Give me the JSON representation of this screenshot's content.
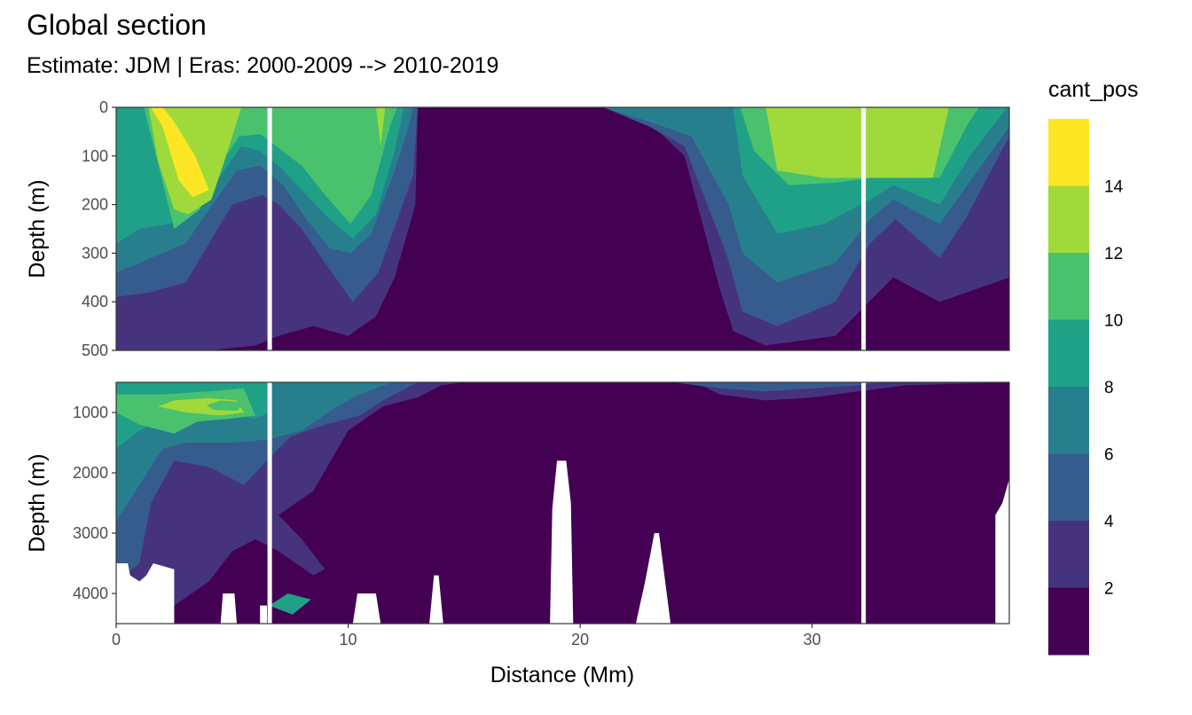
{
  "chart_data": {
    "type": "heatmap",
    "title": "Global section",
    "subtitle": "Estimate: JDM  | Eras: 2000-2009 --> 2010-2019",
    "xlabel": "Distance (Mm)",
    "ylabel": "Depth (m)",
    "xlim": [
      0,
      38.5
    ],
    "x_ticks": [
      0,
      10,
      20,
      30
    ],
    "panels": [
      {
        "name": "upper",
        "ylim": [
          0,
          500
        ],
        "y_ticks": [
          0,
          100,
          200,
          300,
          400,
          500
        ]
      },
      {
        "name": "lower",
        "ylim": [
          500,
          4500
        ],
        "y_ticks": [
          1000,
          2000,
          3000,
          4000
        ]
      }
    ],
    "legend": {
      "title": "cant_pos",
      "placement": "right",
      "breaks": [
        2,
        4,
        6,
        8,
        10,
        12,
        14
      ],
      "colors": [
        "#440154",
        "#46337E",
        "#365C8D",
        "#277F8E",
        "#1FA187",
        "#4AC16D",
        "#9FDA3A",
        "#FDE725"
      ]
    },
    "section_gaps_x": [
      6.6,
      32.2
    ],
    "upper_layers": [
      {
        "level": 1,
        "profile": [
          [
            0,
            500
          ],
          [
            38.5,
            500
          ]
        ]
      },
      {
        "level": 2,
        "profile": [
          [
            0,
            500
          ],
          [
            4,
            500
          ],
          [
            6,
            490
          ],
          [
            7,
            470
          ],
          [
            8.5,
            450
          ],
          [
            10,
            470
          ],
          [
            11.2,
            430
          ],
          [
            12,
            350
          ],
          [
            12.9,
            200
          ],
          [
            13,
            0
          ],
          [
            22,
            0
          ],
          [
            23.5,
            55
          ],
          [
            24.5,
            100
          ],
          [
            26,
            370
          ],
          [
            26.6,
            460
          ],
          [
            28,
            490
          ],
          [
            31,
            470
          ],
          [
            33.5,
            350
          ],
          [
            35.5,
            400
          ],
          [
            38.5,
            350
          ]
        ]
      },
      {
        "level": 3,
        "profile": [
          [
            0,
            390
          ],
          [
            1.5,
            380
          ],
          [
            3,
            360
          ],
          [
            4,
            280
          ],
          [
            5,
            200
          ],
          [
            6.3,
            180
          ],
          [
            7,
            200
          ],
          [
            8,
            250
          ],
          [
            9,
            320
          ],
          [
            10.2,
            400
          ],
          [
            11.3,
            340
          ],
          [
            12.2,
            220
          ],
          [
            12.8,
            140
          ],
          [
            13,
            0
          ],
          [
            21,
            0
          ],
          [
            23,
            40
          ],
          [
            24.5,
            80
          ],
          [
            26.3,
            300
          ],
          [
            27,
            420
          ],
          [
            28.5,
            450
          ],
          [
            31,
            400
          ],
          [
            32.5,
            280
          ],
          [
            33.6,
            230
          ],
          [
            35.5,
            310
          ],
          [
            36.6,
            230
          ],
          [
            38.5,
            60
          ]
        ]
      },
      {
        "level": 4,
        "profile": [
          [
            0,
            340
          ],
          [
            1,
            320
          ],
          [
            2,
            300
          ],
          [
            3,
            280
          ],
          [
            4,
            210
          ],
          [
            5.2,
            130
          ],
          [
            6.2,
            120
          ],
          [
            7.2,
            160
          ],
          [
            8.2,
            230
          ],
          [
            9.2,
            290
          ],
          [
            10.1,
            300
          ],
          [
            11,
            260
          ],
          [
            12,
            130
          ],
          [
            12.6,
            40
          ],
          [
            12.8,
            0
          ],
          [
            21,
            0
          ],
          [
            23,
            30
          ],
          [
            24.8,
            60
          ],
          [
            26.4,
            200
          ],
          [
            27,
            300
          ],
          [
            28.5,
            360
          ],
          [
            31,
            320
          ],
          [
            32.5,
            230
          ],
          [
            33.5,
            190
          ],
          [
            35.5,
            240
          ],
          [
            36.7,
            160
          ],
          [
            38.5,
            40
          ]
        ]
      },
      {
        "level": 5,
        "profile": [
          [
            0,
            280
          ],
          [
            1,
            250
          ],
          [
            2.3,
            240
          ],
          [
            3.5,
            210
          ],
          [
            4.5,
            140
          ],
          [
            5.4,
            80
          ],
          [
            6.2,
            90
          ],
          [
            7,
            120
          ],
          [
            8,
            170
          ],
          [
            9.2,
            230
          ],
          [
            10.2,
            270
          ],
          [
            11.2,
            220
          ],
          [
            12,
            90
          ],
          [
            12.4,
            0
          ],
          [
            26.6,
            0
          ],
          [
            27,
            140
          ],
          [
            28.5,
            260
          ],
          [
            30.5,
            240
          ],
          [
            32.5,
            190
          ],
          [
            33.5,
            160
          ],
          [
            35.5,
            200
          ],
          [
            36.8,
            100
          ],
          [
            38.4,
            0
          ]
        ]
      },
      {
        "level": 6,
        "profile": [
          [
            0,
            0
          ],
          [
            1.2,
            0
          ],
          [
            2.5,
            250
          ],
          [
            3.6,
            210
          ],
          [
            4.3,
            130
          ],
          [
            5.3,
            60
          ],
          [
            6.2,
            55
          ],
          [
            6.9,
            80
          ],
          [
            8,
            120
          ],
          [
            9,
            180
          ],
          [
            10.1,
            240
          ],
          [
            11,
            180
          ],
          [
            11.8,
            40
          ],
          [
            12.1,
            0
          ],
          [
            26.9,
            0
          ],
          [
            27.5,
            90
          ],
          [
            29,
            160
          ],
          [
            31,
            155
          ],
          [
            32.6,
            145
          ],
          [
            33.6,
            140
          ],
          [
            35.5,
            145
          ],
          [
            36.7,
            35
          ],
          [
            37.2,
            0
          ]
        ]
      },
      {
        "level": 7,
        "profile": [
          [
            0,
            0
          ],
          [
            1.4,
            0
          ],
          [
            1.8,
            110
          ],
          [
            2.5,
            210
          ],
          [
            3.1,
            220
          ],
          [
            4.1,
            190
          ],
          [
            4.6,
            120
          ],
          [
            5,
            60
          ],
          [
            5.4,
            0
          ],
          [
            11.2,
            0
          ],
          [
            11.4,
            80
          ],
          [
            11.6,
            0
          ],
          [
            28,
            0
          ],
          [
            28.5,
            130
          ],
          [
            30.5,
            145
          ],
          [
            33,
            145
          ],
          [
            35.2,
            145
          ],
          [
            35.9,
            0
          ]
        ]
      },
      {
        "level": 8,
        "profile": [
          [
            0,
            0
          ],
          [
            1.5,
            0
          ],
          [
            2,
            40
          ],
          [
            2.7,
            150
          ],
          [
            3.3,
            185
          ],
          [
            4,
            170
          ],
          [
            3.4,
            100
          ],
          [
            2.5,
            30
          ],
          [
            2,
            0
          ]
        ]
      }
    ],
    "lower_layers": [
      {
        "level": 1,
        "profile": [
          [
            0,
            4500
          ],
          [
            38.5,
            4500
          ]
        ]
      },
      {
        "level": 2,
        "profile": [
          [
            0,
            4400
          ],
          [
            2.5,
            4200
          ],
          [
            4,
            3800
          ],
          [
            5,
            3300
          ],
          [
            6,
            3100
          ],
          [
            7,
            3300
          ],
          [
            8.5,
            3700
          ],
          [
            9,
            3600
          ],
          [
            8,
            3100
          ],
          [
            7,
            2700
          ],
          [
            8.5,
            2300
          ],
          [
            10,
            1300
          ],
          [
            11.5,
            900
          ],
          [
            13,
            750
          ],
          [
            14,
            550
          ],
          [
            15,
            500
          ],
          [
            25,
            500
          ],
          [
            26,
            700
          ],
          [
            28,
            800
          ],
          [
            30,
            750
          ],
          [
            32,
            650
          ],
          [
            34,
            550
          ],
          [
            38.5,
            500
          ]
        ]
      },
      {
        "level": 3,
        "profile": [
          [
            0,
            3800
          ],
          [
            1,
            3500
          ],
          [
            1.5,
            2500
          ],
          [
            2.5,
            1800
          ],
          [
            4,
            1900
          ],
          [
            5.5,
            2200
          ],
          [
            6.5,
            1800
          ],
          [
            7.5,
            1400
          ],
          [
            9,
            1200
          ],
          [
            10.5,
            1050
          ],
          [
            11.5,
            800
          ],
          [
            12.5,
            600
          ],
          [
            13,
            500
          ],
          [
            24,
            500
          ],
          [
            26,
            600
          ],
          [
            28,
            650
          ],
          [
            30,
            600
          ],
          [
            32,
            550
          ],
          [
            33,
            500
          ],
          [
            38.5,
            500
          ]
        ]
      },
      {
        "level": 4,
        "profile": [
          [
            0,
            2800
          ],
          [
            1,
            2200
          ],
          [
            2,
            1600
          ],
          [
            3,
            1500
          ],
          [
            5,
            1500
          ],
          [
            6.5,
            1450
          ],
          [
            8,
            1300
          ],
          [
            9.5,
            900
          ],
          [
            10.5,
            700
          ],
          [
            11.5,
            550
          ],
          [
            12,
            500
          ],
          [
            32,
            500
          ]
        ]
      },
      {
        "level": 5,
        "profile": [
          [
            0,
            1600
          ],
          [
            1,
            1300
          ],
          [
            2,
            1100
          ],
          [
            3,
            1000
          ],
          [
            4.5,
            1000
          ],
          [
            6,
            1100
          ],
          [
            6.6,
            1000
          ],
          [
            6.6,
            500
          ],
          [
            0,
            500
          ]
        ]
      },
      {
        "level": 6,
        "profile": [
          [
            0,
            1000
          ],
          [
            1,
            1200
          ],
          [
            2.5,
            1350
          ],
          [
            3.5,
            1150
          ],
          [
            5,
            1100
          ],
          [
            6,
            1050
          ],
          [
            5.5,
            600
          ],
          [
            4,
            650
          ],
          [
            2,
            700
          ],
          [
            0,
            700
          ]
        ]
      },
      {
        "level": 7,
        "profile": [
          [
            1.8,
            900
          ],
          [
            3,
            1000
          ],
          [
            4.5,
            1050
          ],
          [
            5.5,
            1000
          ],
          [
            5.2,
            800
          ],
          [
            4,
            760
          ],
          [
            2.5,
            800
          ]
        ]
      }
    ],
    "lower_patches": [
      {
        "level": 6,
        "points": [
          [
            3.9,
            880
          ],
          [
            4.5,
            800
          ],
          [
            5.6,
            830
          ],
          [
            5.2,
            970
          ],
          [
            4.2,
            960
          ]
        ]
      },
      {
        "level": 5,
        "points": [
          [
            6.6,
            4200
          ],
          [
            7.4,
            4000
          ],
          [
            8.4,
            4100
          ],
          [
            7.6,
            4350
          ]
        ]
      }
    ],
    "seafloor": [
      {
        "points": [
          [
            0,
            2500
          ],
          [
            0.1,
            4500
          ]
        ]
      },
      {
        "points": [
          [
            0,
            4500
          ],
          [
            0,
            3500
          ],
          [
            0.5,
            3500
          ],
          [
            0.6,
            3700
          ],
          [
            1,
            3800
          ],
          [
            1.3,
            3700
          ],
          [
            1.6,
            3500
          ],
          [
            2.5,
            3600
          ],
          [
            2.5,
            4500
          ]
        ]
      },
      {
        "points": [
          [
            4.5,
            4500
          ],
          [
            4.6,
            4000
          ],
          [
            5.1,
            4000
          ],
          [
            5.2,
            4500
          ]
        ]
      },
      {
        "points": [
          [
            6.2,
            4500
          ],
          [
            6.2,
            4200
          ],
          [
            6.5,
            4200
          ],
          [
            6.5,
            4500
          ]
        ]
      },
      {
        "points": [
          [
            10.2,
            4500
          ],
          [
            10.4,
            4000
          ],
          [
            11.2,
            4000
          ],
          [
            11.4,
            4500
          ]
        ]
      },
      {
        "points": [
          [
            13.5,
            4500
          ],
          [
            13.7,
            3700
          ],
          [
            13.9,
            3700
          ],
          [
            14.1,
            4500
          ]
        ]
      },
      {
        "points": [
          [
            18.7,
            4500
          ],
          [
            18.8,
            2600
          ],
          [
            19,
            1800
          ],
          [
            19.4,
            1800
          ],
          [
            19.6,
            2500
          ],
          [
            19.7,
            4500
          ]
        ]
      },
      {
        "points": [
          [
            22.4,
            4500
          ],
          [
            22.8,
            3800
          ],
          [
            23.2,
            3000
          ],
          [
            23.4,
            3000
          ],
          [
            23.8,
            4200
          ],
          [
            23.9,
            4500
          ]
        ]
      },
      {
        "points": [
          [
            37.9,
            4500
          ],
          [
            37.9,
            2700
          ],
          [
            38.2,
            2500
          ],
          [
            38.5,
            2100
          ],
          [
            38.5,
            4500
          ]
        ]
      }
    ]
  }
}
